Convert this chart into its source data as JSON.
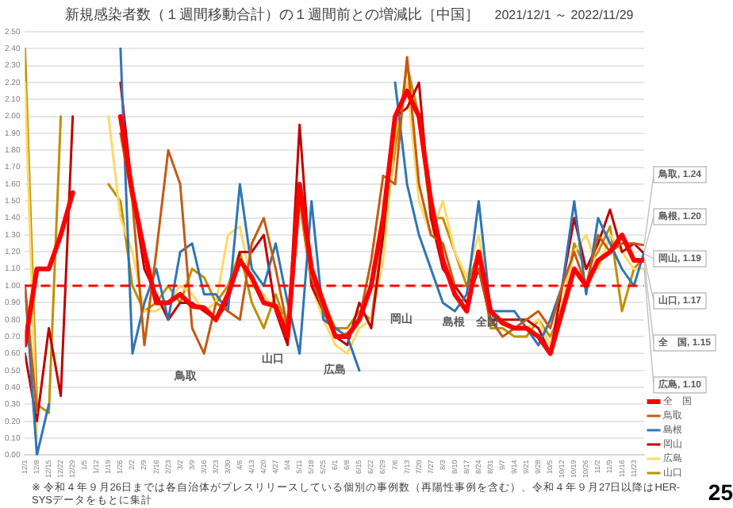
{
  "chart_data": {
    "type": "line",
    "title": "新規感染者数（１週間移動合計）の１週間前との増減比［中国］",
    "subtitle": "2021/12/1 ～ 2022/11/29",
    "x": [
      "2021-12-01",
      "2021-12-08",
      "2021-12-15",
      "2021-12-22",
      "2021-12-29",
      "2022-01-05",
      "2022-01-12",
      "2022-01-19",
      "2022-01-26",
      "2022-02-02",
      "2022-02-09",
      "2022-02-16",
      "2022-02-23",
      "2022-03-02",
      "2022-03-09",
      "2022-03-16",
      "2022-03-23",
      "2022-03-30",
      "2022-04-06",
      "2022-04-13",
      "2022-04-20",
      "2022-04-27",
      "2022-05-04",
      "2022-05-11",
      "2022-05-18",
      "2022-05-25",
      "2022-06-01",
      "2022-06-08",
      "2022-06-15",
      "2022-06-22",
      "2022-06-29",
      "2022-07-06",
      "2022-07-13",
      "2022-07-20",
      "2022-07-27",
      "2022-08-03",
      "2022-08-10",
      "2022-08-17",
      "2022-08-24",
      "2022-08-31",
      "2022-09-07",
      "2022-09-14",
      "2022-09-21",
      "2022-09-28",
      "2022-10-05",
      "2022-10-12",
      "2022-10-19",
      "2022-10-26",
      "2022-11-02",
      "2022-11-09",
      "2022-11-16",
      "2022-11-23",
      "2022-11-29"
    ],
    "series": [
      {
        "name": "全　国",
        "color": "#ff0000",
        "values": [
          0.65,
          1.1,
          1.1,
          1.3,
          1.55,
          null,
          null,
          null,
          2.0,
          1.55,
          1.2,
          0.9,
          0.9,
          0.95,
          0.88,
          0.87,
          0.8,
          0.95,
          1.15,
          1.05,
          0.9,
          0.88,
          0.7,
          1.6,
          1.1,
          0.9,
          0.7,
          0.7,
          0.8,
          1.0,
          1.4,
          2.0,
          2.15,
          2.0,
          1.5,
          1.15,
          0.95,
          0.85,
          1.2,
          0.85,
          0.78,
          0.75,
          0.75,
          0.7,
          0.6,
          0.85,
          1.1,
          1.0,
          1.15,
          1.2,
          1.3,
          1.15,
          1.15
        ]
      },
      {
        "name": "鳥取",
        "color": "#c55a11",
        "values": [
          1.0,
          0.25,
          null,
          null,
          null,
          null,
          null,
          null,
          1.9,
          1.5,
          0.65,
          1.2,
          1.8,
          1.6,
          0.75,
          0.6,
          0.9,
          0.85,
          0.8,
          1.25,
          1.4,
          1.1,
          0.75,
          1.55,
          1.05,
          0.85,
          0.7,
          0.72,
          0.8,
          1.15,
          1.65,
          1.6,
          2.35,
          1.6,
          1.3,
          1.25,
          1.0,
          1.0,
          1.1,
          0.8,
          0.7,
          0.75,
          0.8,
          0.85,
          0.75,
          1.0,
          1.2,
          1.0,
          1.3,
          1.2,
          1.25,
          1.25,
          1.24
        ]
      },
      {
        "name": "島根",
        "color": "#2e75b6",
        "values": [
          1.0,
          0.0,
          0.3,
          null,
          null,
          null,
          null,
          null,
          2.4,
          0.6,
          0.9,
          1.1,
          0.8,
          1.2,
          1.25,
          0.95,
          0.95,
          0.85,
          1.6,
          1.1,
          1.0,
          1.25,
          0.9,
          0.6,
          1.5,
          0.8,
          0.75,
          0.7,
          0.5,
          null,
          null,
          2.2,
          1.6,
          1.3,
          1.1,
          0.9,
          0.85,
          0.95,
          1.5,
          0.85,
          0.85,
          0.85,
          0.75,
          0.65,
          0.8,
          1.0,
          1.5,
          0.95,
          1.4,
          1.25,
          1.1,
          1.0,
          1.2
        ]
      },
      {
        "name": "岡山",
        "color": "#c00000",
        "values": [
          0.6,
          0.2,
          0.75,
          0.35,
          2.0,
          null,
          null,
          null,
          2.2,
          1.55,
          1.1,
          0.95,
          0.8,
          0.9,
          0.9,
          0.85,
          0.8,
          0.9,
          1.2,
          1.2,
          1.3,
          0.85,
          0.65,
          1.95,
          1.0,
          0.85,
          0.7,
          0.65,
          0.9,
          0.75,
          1.3,
          2.0,
          2.05,
          2.2,
          1.4,
          1.1,
          1.0,
          0.9,
          1.1,
          0.8,
          0.8,
          0.8,
          0.8,
          0.75,
          0.6,
          1.0,
          1.4,
          1.1,
          1.25,
          1.45,
          1.2,
          1.25,
          1.19
        ]
      },
      {
        "name": "広島",
        "color": "#ffd966",
        "values": [
          2.2,
          0.1,
          null,
          null,
          null,
          null,
          null,
          2.0,
          1.4,
          1.2,
          0.85,
          0.85,
          0.9,
          1.0,
          0.95,
          0.85,
          0.9,
          1.3,
          1.35,
          1.0,
          0.95,
          0.85,
          0.8,
          1.6,
          1.0,
          0.8,
          0.65,
          0.6,
          0.75,
          0.8,
          1.15,
          1.9,
          2.2,
          1.5,
          1.3,
          1.5,
          1.2,
          1.05,
          1.3,
          0.85,
          0.8,
          0.75,
          0.75,
          0.8,
          0.65,
          0.9,
          1.2,
          1.3,
          1.1,
          1.3,
          1.2,
          1.1,
          1.1
        ]
      },
      {
        "name": "山口",
        "color": "#bf9000",
        "values": [
          2.4,
          0.3,
          0.25,
          2.0,
          null,
          null,
          null,
          1.6,
          1.5,
          1.0,
          0.85,
          0.9,
          1.0,
          0.9,
          1.1,
          1.05,
          0.9,
          1.0,
          1.2,
          0.9,
          0.75,
          0.95,
          0.75,
          1.5,
          1.0,
          0.9,
          0.75,
          0.75,
          0.85,
          0.8,
          1.3,
          1.8,
          2.3,
          2.0,
          1.4,
          1.4,
          1.2,
          1.0,
          1.2,
          0.75,
          0.75,
          0.7,
          0.7,
          0.8,
          0.7,
          0.85,
          1.25,
          1.1,
          1.2,
          1.35,
          0.85,
          1.1,
          1.17
        ]
      }
    ],
    "xlim": [
      "2021-12-01",
      "2022-11-29"
    ],
    "xticks": [
      {
        "value": "2021-12-01",
        "label": "12/1"
      },
      {
        "value": "2021-12-08",
        "label": "12/8"
      },
      {
        "value": "2021-12-15",
        "label": "12/15"
      },
      {
        "value": "2021-12-22",
        "label": "12/22"
      },
      {
        "value": "2021-12-29",
        "label": "12/29"
      },
      {
        "value": "2022-01-05",
        "label": "1/5"
      },
      {
        "value": "2022-01-12",
        "label": "1/12"
      },
      {
        "value": "2022-01-19",
        "label": "1/19"
      },
      {
        "value": "2022-01-26",
        "label": "1/26"
      },
      {
        "value": "2022-02-02",
        "label": "2/2"
      },
      {
        "value": "2022-02-09",
        "label": "2/9"
      },
      {
        "value": "2022-02-16",
        "label": "2/16"
      },
      {
        "value": "2022-02-23",
        "label": "2/23"
      },
      {
        "value": "2022-03-02",
        "label": "3/2"
      },
      {
        "value": "2022-03-09",
        "label": "3/9"
      },
      {
        "value": "2022-03-16",
        "label": "3/16"
      },
      {
        "value": "2022-03-23",
        "label": "3/23"
      },
      {
        "value": "2022-03-30",
        "label": "3/30"
      },
      {
        "value": "2022-04-06",
        "label": "4/6"
      },
      {
        "value": "2022-04-13",
        "label": "4/13"
      },
      {
        "value": "2022-04-20",
        "label": "4/20"
      },
      {
        "value": "2022-04-27",
        "label": "4/27"
      },
      {
        "value": "2022-05-04",
        "label": "5/4"
      },
      {
        "value": "2022-05-11",
        "label": "5/11"
      },
      {
        "value": "2022-05-18",
        "label": "5/18"
      },
      {
        "value": "2022-05-25",
        "label": "5/25"
      },
      {
        "value": "2022-06-01",
        "label": "6/1"
      },
      {
        "value": "2022-06-08",
        "label": "6/8"
      },
      {
        "value": "2022-06-15",
        "label": "6/15"
      },
      {
        "value": "2022-06-22",
        "label": "6/22"
      },
      {
        "value": "2022-06-29",
        "label": "6/29"
      },
      {
        "value": "2022-07-06",
        "label": "7/6"
      },
      {
        "value": "2022-07-13",
        "label": "7/13"
      },
      {
        "value": "2022-07-20",
        "label": "7/20"
      },
      {
        "value": "2022-07-27",
        "label": "7/27"
      },
      {
        "value": "2022-08-03",
        "label": "8/3"
      },
      {
        "value": "2022-08-10",
        "label": "8/10"
      },
      {
        "value": "2022-08-17",
        "label": "8/17"
      },
      {
        "value": "2022-08-24",
        "label": "8/24"
      },
      {
        "value": "2022-08-31",
        "label": "8/31"
      },
      {
        "value": "2022-09-07",
        "label": "9/7"
      },
      {
        "value": "2022-09-14",
        "label": "9/14"
      },
      {
        "value": "2022-09-21",
        "label": "9/21"
      },
      {
        "value": "2022-09-28",
        "label": "9/28"
      },
      {
        "value": "2022-10-05",
        "label": "10/5"
      },
      {
        "value": "2022-10-12",
        "label": "10/12"
      },
      {
        "value": "2022-10-19",
        "label": "10/19"
      },
      {
        "value": "2022-10-26",
        "label": "10/26"
      },
      {
        "value": "2022-11-02",
        "label": "11/2"
      },
      {
        "value": "2022-11-09",
        "label": "11/9"
      },
      {
        "value": "2022-11-16",
        "label": "11/16"
      },
      {
        "value": "2022-11-23",
        "label": "11/23"
      }
    ],
    "ylim": [
      0,
      2.5
    ],
    "yticks": [
      {
        "value": 0,
        "label": "0.00"
      },
      {
        "value": 0.1,
        "label": "0.10"
      },
      {
        "value": 0.2,
        "label": "0.20"
      },
      {
        "value": 0.3,
        "label": "0.30"
      },
      {
        "value": 0.4,
        "label": "0.40"
      },
      {
        "value": 0.5,
        "label": "0.50"
      },
      {
        "value": 0.6,
        "label": "0.60"
      },
      {
        "value": 0.7,
        "label": "0.70"
      },
      {
        "value": 0.8,
        "label": "0.80"
      },
      {
        "value": 0.9,
        "label": "0.90"
      },
      {
        "value": 1.0,
        "label": "1.00"
      },
      {
        "value": 1.1,
        "label": "1.10"
      },
      {
        "value": 1.2,
        "label": "1.20"
      },
      {
        "value": 1.3,
        "label": "1.30"
      },
      {
        "value": 1.4,
        "label": "1.40"
      },
      {
        "value": 1.5,
        "label": "1.50"
      },
      {
        "value": 1.6,
        "label": "1.60"
      },
      {
        "value": 1.7,
        "label": "1.70"
      },
      {
        "value": 1.8,
        "label": "1.80"
      },
      {
        "value": 1.9,
        "label": "1.90"
      },
      {
        "value": 2.0,
        "label": "2.00"
      },
      {
        "value": 2.1,
        "label": "2.10"
      },
      {
        "value": 2.2,
        "label": "2.20"
      },
      {
        "value": 2.3,
        "label": "2.30"
      },
      {
        "value": 2.4,
        "label": "2.40"
      },
      {
        "value": 2.5,
        "label": "2.50"
      }
    ],
    "grid": "y",
    "legend": "bottom right",
    "marker": "none",
    "line_style": "solid",
    "ref_lines": [
      {
        "axis": "y",
        "value": 1.0,
        "color": "#ff0000",
        "line_style": "dashed"
      }
    ],
    "annotations": [
      "鳥取",
      "山口",
      "広島",
      "岡山",
      "島根",
      "全国",
      {
        "text": "鳥取, 1.24",
        "x": "2022-11-29",
        "y": 1.24
      },
      {
        "text": "島根, 1.20",
        "x": "2022-11-29",
        "y": 1.2
      },
      {
        "text": "岡山, 1.19",
        "x": "2022-11-29",
        "y": 1.19
      },
      {
        "text": "山口, 1.17",
        "x": "2022-11-29",
        "y": 1.17
      },
      {
        "text": "全　国, 1.15",
        "x": "2022-11-29",
        "y": 1.15
      },
      {
        "text": "広島, 1.10",
        "x": "2022-11-29",
        "y": 1.1
      },
      "※ 令和４年９月26日までは各自治体がプレスリリースしている個別の事例数（再陽性事例を含む）、令和４年９月27日以降はHER-SYSデータをもとに集計",
      "25"
    ]
  }
}
